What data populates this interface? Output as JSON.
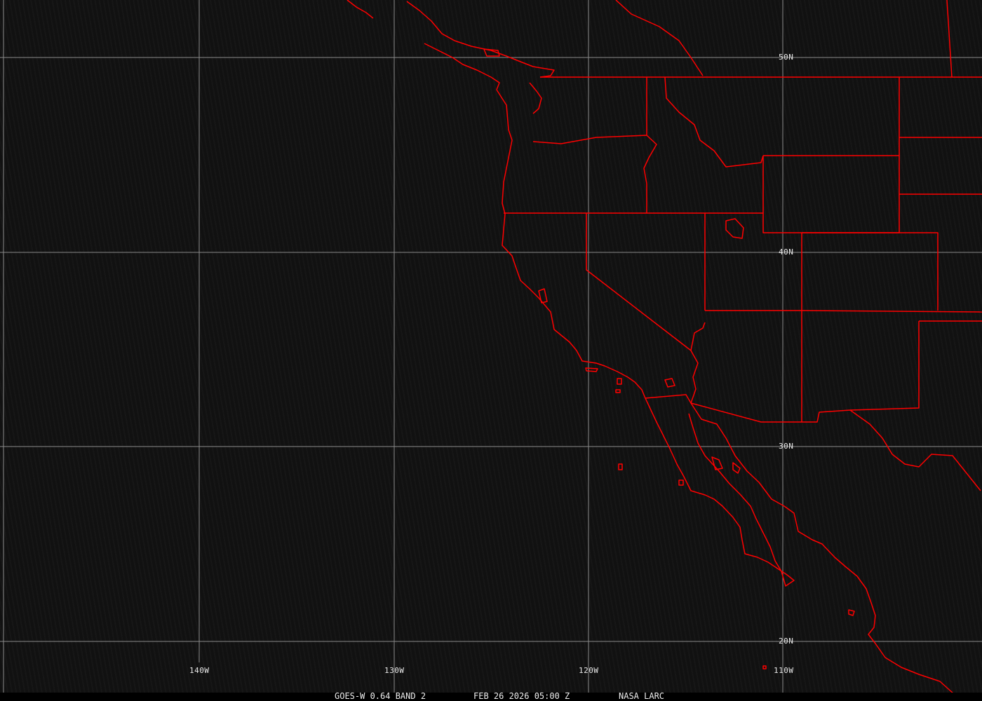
{
  "map": {
    "caption": {
      "sensor": "GOES-W 0.64 BAND 2",
      "datetime": "FEB 26 2026 05:00 Z",
      "source": "NASA LARC"
    },
    "lat_labels": [
      "50N",
      "40N",
      "30N",
      "20N"
    ],
    "lon_labels": [
      "140W",
      "130W",
      "120W",
      "110W"
    ],
    "colors": {
      "boundaries": "#ff0000",
      "grid": "#8a8a8a",
      "background": "#111111",
      "text": "#e8e8e8"
    }
  }
}
